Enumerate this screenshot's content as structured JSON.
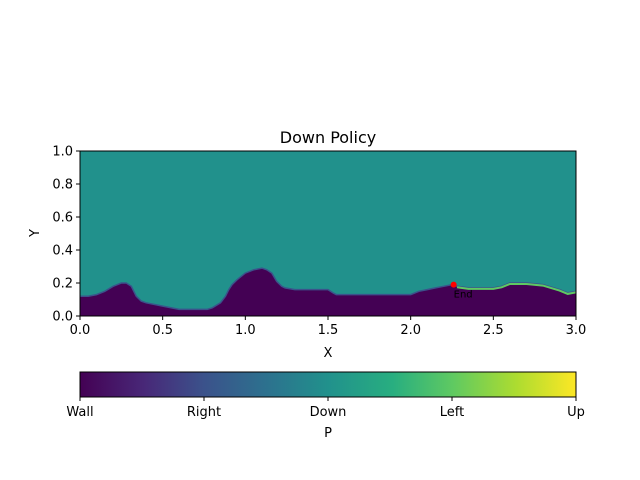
{
  "chart_data": {
    "type": "heatmap",
    "title": "Down Policy",
    "xlabel": "X",
    "ylabel": "Y",
    "xlim": [
      0.0,
      3.0
    ],
    "ylim": [
      0.0,
      1.0
    ],
    "xticks": [
      "0.0",
      "0.5",
      "1.0",
      "1.5",
      "2.0",
      "2.5",
      "3.0"
    ],
    "yticks": [
      "0.0",
      "0.2",
      "0.4",
      "0.6",
      "0.8",
      "1.0"
    ],
    "field_value": "Down",
    "wall_boundary": {
      "x": [
        0.0,
        0.05,
        0.1,
        0.15,
        0.2,
        0.25,
        0.28,
        0.31,
        0.34,
        0.37,
        0.4,
        0.5,
        0.6,
        0.7,
        0.77,
        0.8,
        0.85,
        0.88,
        0.9,
        0.92,
        0.95,
        1.0,
        1.05,
        1.1,
        1.13,
        1.16,
        1.19,
        1.22,
        1.24,
        1.3,
        1.4,
        1.5,
        1.53,
        1.55,
        1.6,
        1.8,
        2.0,
        2.05,
        2.1,
        2.15,
        2.2,
        2.25,
        2.28,
        2.35,
        2.4,
        2.5,
        2.55,
        2.6,
        2.7,
        2.8,
        2.9,
        2.95,
        3.0
      ],
      "y": [
        0.12,
        0.12,
        0.13,
        0.15,
        0.18,
        0.2,
        0.2,
        0.18,
        0.12,
        0.09,
        0.08,
        0.06,
        0.04,
        0.04,
        0.04,
        0.05,
        0.08,
        0.12,
        0.16,
        0.19,
        0.22,
        0.26,
        0.28,
        0.29,
        0.28,
        0.26,
        0.21,
        0.18,
        0.17,
        0.16,
        0.16,
        0.16,
        0.14,
        0.13,
        0.13,
        0.13,
        0.13,
        0.15,
        0.16,
        0.17,
        0.18,
        0.19,
        0.18,
        0.17,
        0.17,
        0.17,
        0.18,
        0.2,
        0.2,
        0.19,
        0.16,
        0.14,
        0.15
      ]
    },
    "left_edge": {
      "x": [
        2.28,
        2.35,
        2.4,
        2.5,
        2.55,
        2.6,
        2.7,
        2.8,
        2.9,
        2.95,
        3.0
      ],
      "y": [
        0.18,
        0.17,
        0.17,
        0.17,
        0.18,
        0.2,
        0.2,
        0.19,
        0.16,
        0.14,
        0.15
      ]
    },
    "end_marker": {
      "x": 2.26,
      "y": 0.19,
      "label": "End",
      "color": "#ff0000"
    },
    "colorbar": {
      "label": "P",
      "ticks": [
        "Wall",
        "Right",
        "Down",
        "Left",
        "Up"
      ],
      "colormap": [
        "#440154",
        "#3b528b",
        "#21918c",
        "#5ec962",
        "#fde725"
      ]
    },
    "colors": {
      "wall": "#440154",
      "down": "#21918c",
      "left_edge": "#5ec962",
      "right_edge": "#3b528b"
    }
  }
}
